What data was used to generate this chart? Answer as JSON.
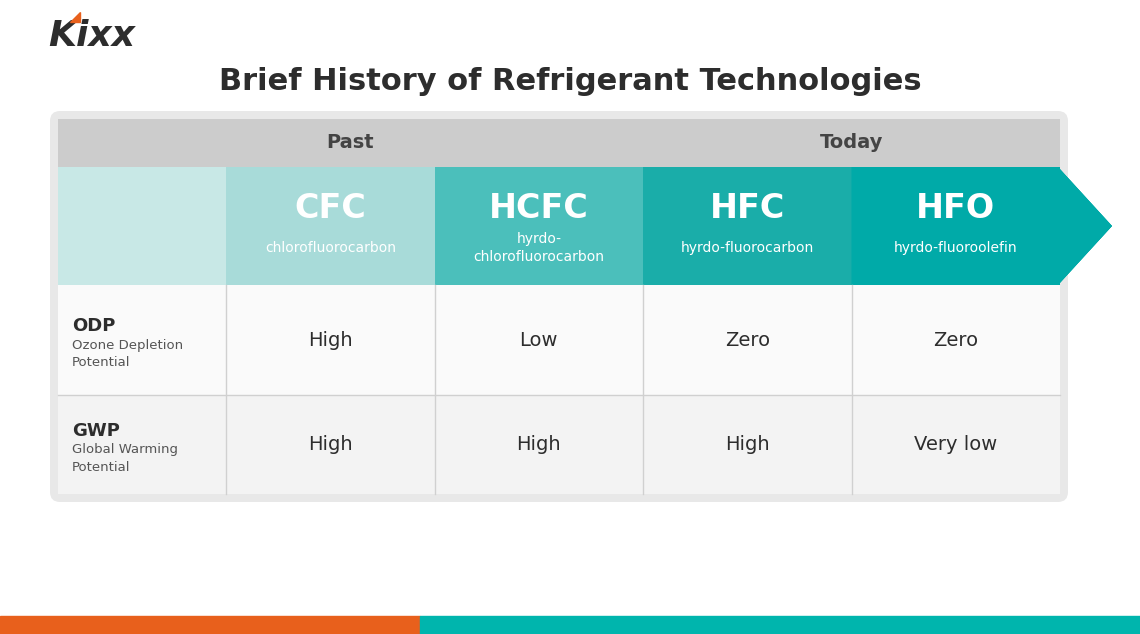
{
  "title": "Brief History of Refrigerant Technologies",
  "title_fontsize": 22,
  "title_fontweight": "bold",
  "title_color": "#2d2d2d",
  "bg_color": "#ffffff",
  "kixx_color": "#2d2d2d",
  "kixx_orange": "#e8601c",
  "header_bg": "#cccccc",
  "arrow_teal": "#00aaa8",
  "footer_orange": "#e8601c",
  "footer_teal": "#00b5ad",
  "past_today_color": "#444444",
  "col_teal_1": "#a8dbd9",
  "col_teal_2": "#4bbfbb",
  "col_teal_3": "#1aada9",
  "col_teal_4": "#00aaa8",
  "col_label_teal": "#c8e8e6",
  "columns": [
    "CFC",
    "HCFC",
    "HFC",
    "HFO"
  ],
  "col_subtitles": [
    "chlorofluorocarbon",
    "hyrdo-\nchlorofluorocarbon",
    "hyrdo-fluorocarbon",
    "hyrdo-fluoroolefin"
  ],
  "row_labels": [
    "ODP",
    "GWP"
  ],
  "row_sublabels": [
    "Ozone Depletion\nPotential",
    "Global Warming\nPotential"
  ],
  "odp_values": [
    "High",
    "Low",
    "Zero",
    "Zero"
  ],
  "gwp_values": [
    "High",
    "High",
    "High",
    "Very low"
  ],
  "past_label": "Past",
  "today_label": "Today"
}
